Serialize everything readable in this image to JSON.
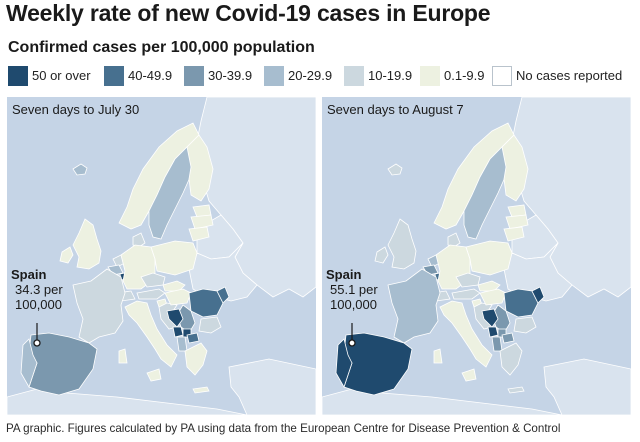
{
  "title": "Weekly rate of new Covid-19 cases in Europe",
  "subtitle": "Confirmed cases per 100,000 population",
  "legend": [
    {
      "label": "50 or over",
      "color": "#1f4a6e"
    },
    {
      "label": "40-49.9",
      "color": "#47708f"
    },
    {
      "label": "30-39.9",
      "color": "#7b98ae"
    },
    {
      "label": "20-29.9",
      "color": "#a7bdcf"
    },
    {
      "label": "10-19.9",
      "color": "#ccd8df"
    },
    {
      "label": "0.1-9.9",
      "color": "#edf1e1"
    },
    {
      "label": "No cases reported",
      "color": "#ffffff"
    }
  ],
  "colors": {
    "sea": "#c5d4e6",
    "non_data_land": "#d9e3ee",
    "border": "#ffffff",
    "marker_line": "#1a1a1a"
  },
  "maps": [
    {
      "caption": "Seven days to July 30",
      "annotation": {
        "country": "Spain",
        "value_line1": "34.3 per",
        "value_line2": "100,000"
      },
      "country_classes": {
        "iceland": "20-29.9",
        "ireland": "0.1-9.9",
        "uk": "0.1-9.9",
        "norway": "0.1-9.9",
        "sweden": "20-29.9",
        "finland": "0.1-9.9",
        "denmark": "10-19.9",
        "estonia": "0.1-9.9",
        "latvia": "0.1-9.9",
        "lithuania": "0.1-9.9",
        "netherlands": "10-19.9",
        "belgium": "20-29.9",
        "luxembourg": "50 or over",
        "germany": "0.1-9.9",
        "poland": "0.1-9.9",
        "czechia": "10-19.9",
        "slovakia": "0.1-9.9",
        "austria": "10-19.9",
        "switzerland": "10-19.9",
        "france": "10-19.9",
        "spain": "30-39.9",
        "portugal": "20-29.9",
        "italy": "0.1-9.9",
        "slovenia": "0.1-9.9",
        "croatia": "10-19.9",
        "hungary": "0.1-9.9",
        "romania": "40-49.9",
        "bulgaria": "10-19.9",
        "serbia": "30-39.9",
        "bosnia": "50 or over",
        "montenegro": "50 or over",
        "kosovo": "50 or over",
        "albania": "20-29.9",
        "north_macedonia": "40-49.9",
        "greece": "0.1-9.9",
        "moldova": "40-49.9"
      }
    },
    {
      "caption": "Seven days to August 7",
      "annotation": {
        "country": "Spain",
        "value_line1": "55.1 per",
        "value_line2": "100,000"
      },
      "country_classes": {
        "iceland": "10-19.9",
        "ireland": "10-19.9",
        "uk": "10-19.9",
        "norway": "0.1-9.9",
        "sweden": "20-29.9",
        "finland": "0.1-9.9",
        "denmark": "10-19.9",
        "estonia": "0.1-9.9",
        "latvia": "0.1-9.9",
        "lithuania": "0.1-9.9",
        "netherlands": "20-29.9",
        "belgium": "30-39.9",
        "luxembourg": "40-49.9",
        "germany": "0.1-9.9",
        "poland": "0.1-9.9",
        "czechia": "10-19.9",
        "slovakia": "0.1-9.9",
        "austria": "10-19.9",
        "switzerland": "10-19.9",
        "france": "20-29.9",
        "spain": "50 or over",
        "portugal": "50 or over",
        "italy": "0.1-9.9",
        "slovenia": "0.1-9.9",
        "croatia": "10-19.9",
        "hungary": "0.1-9.9",
        "romania": "40-49.9",
        "bulgaria": "10-19.9",
        "serbia": "30-39.9",
        "bosnia": "50 or over",
        "montenegro": "50 or over",
        "kosovo": "30-39.9",
        "albania": "30-39.9",
        "north_macedonia": "30-39.9",
        "greece": "10-19.9",
        "moldova": "50 or over"
      }
    }
  ],
  "footer": "PA graphic. Figures calculated by PA using data from the European Centre for Disease Prevention & Control"
}
